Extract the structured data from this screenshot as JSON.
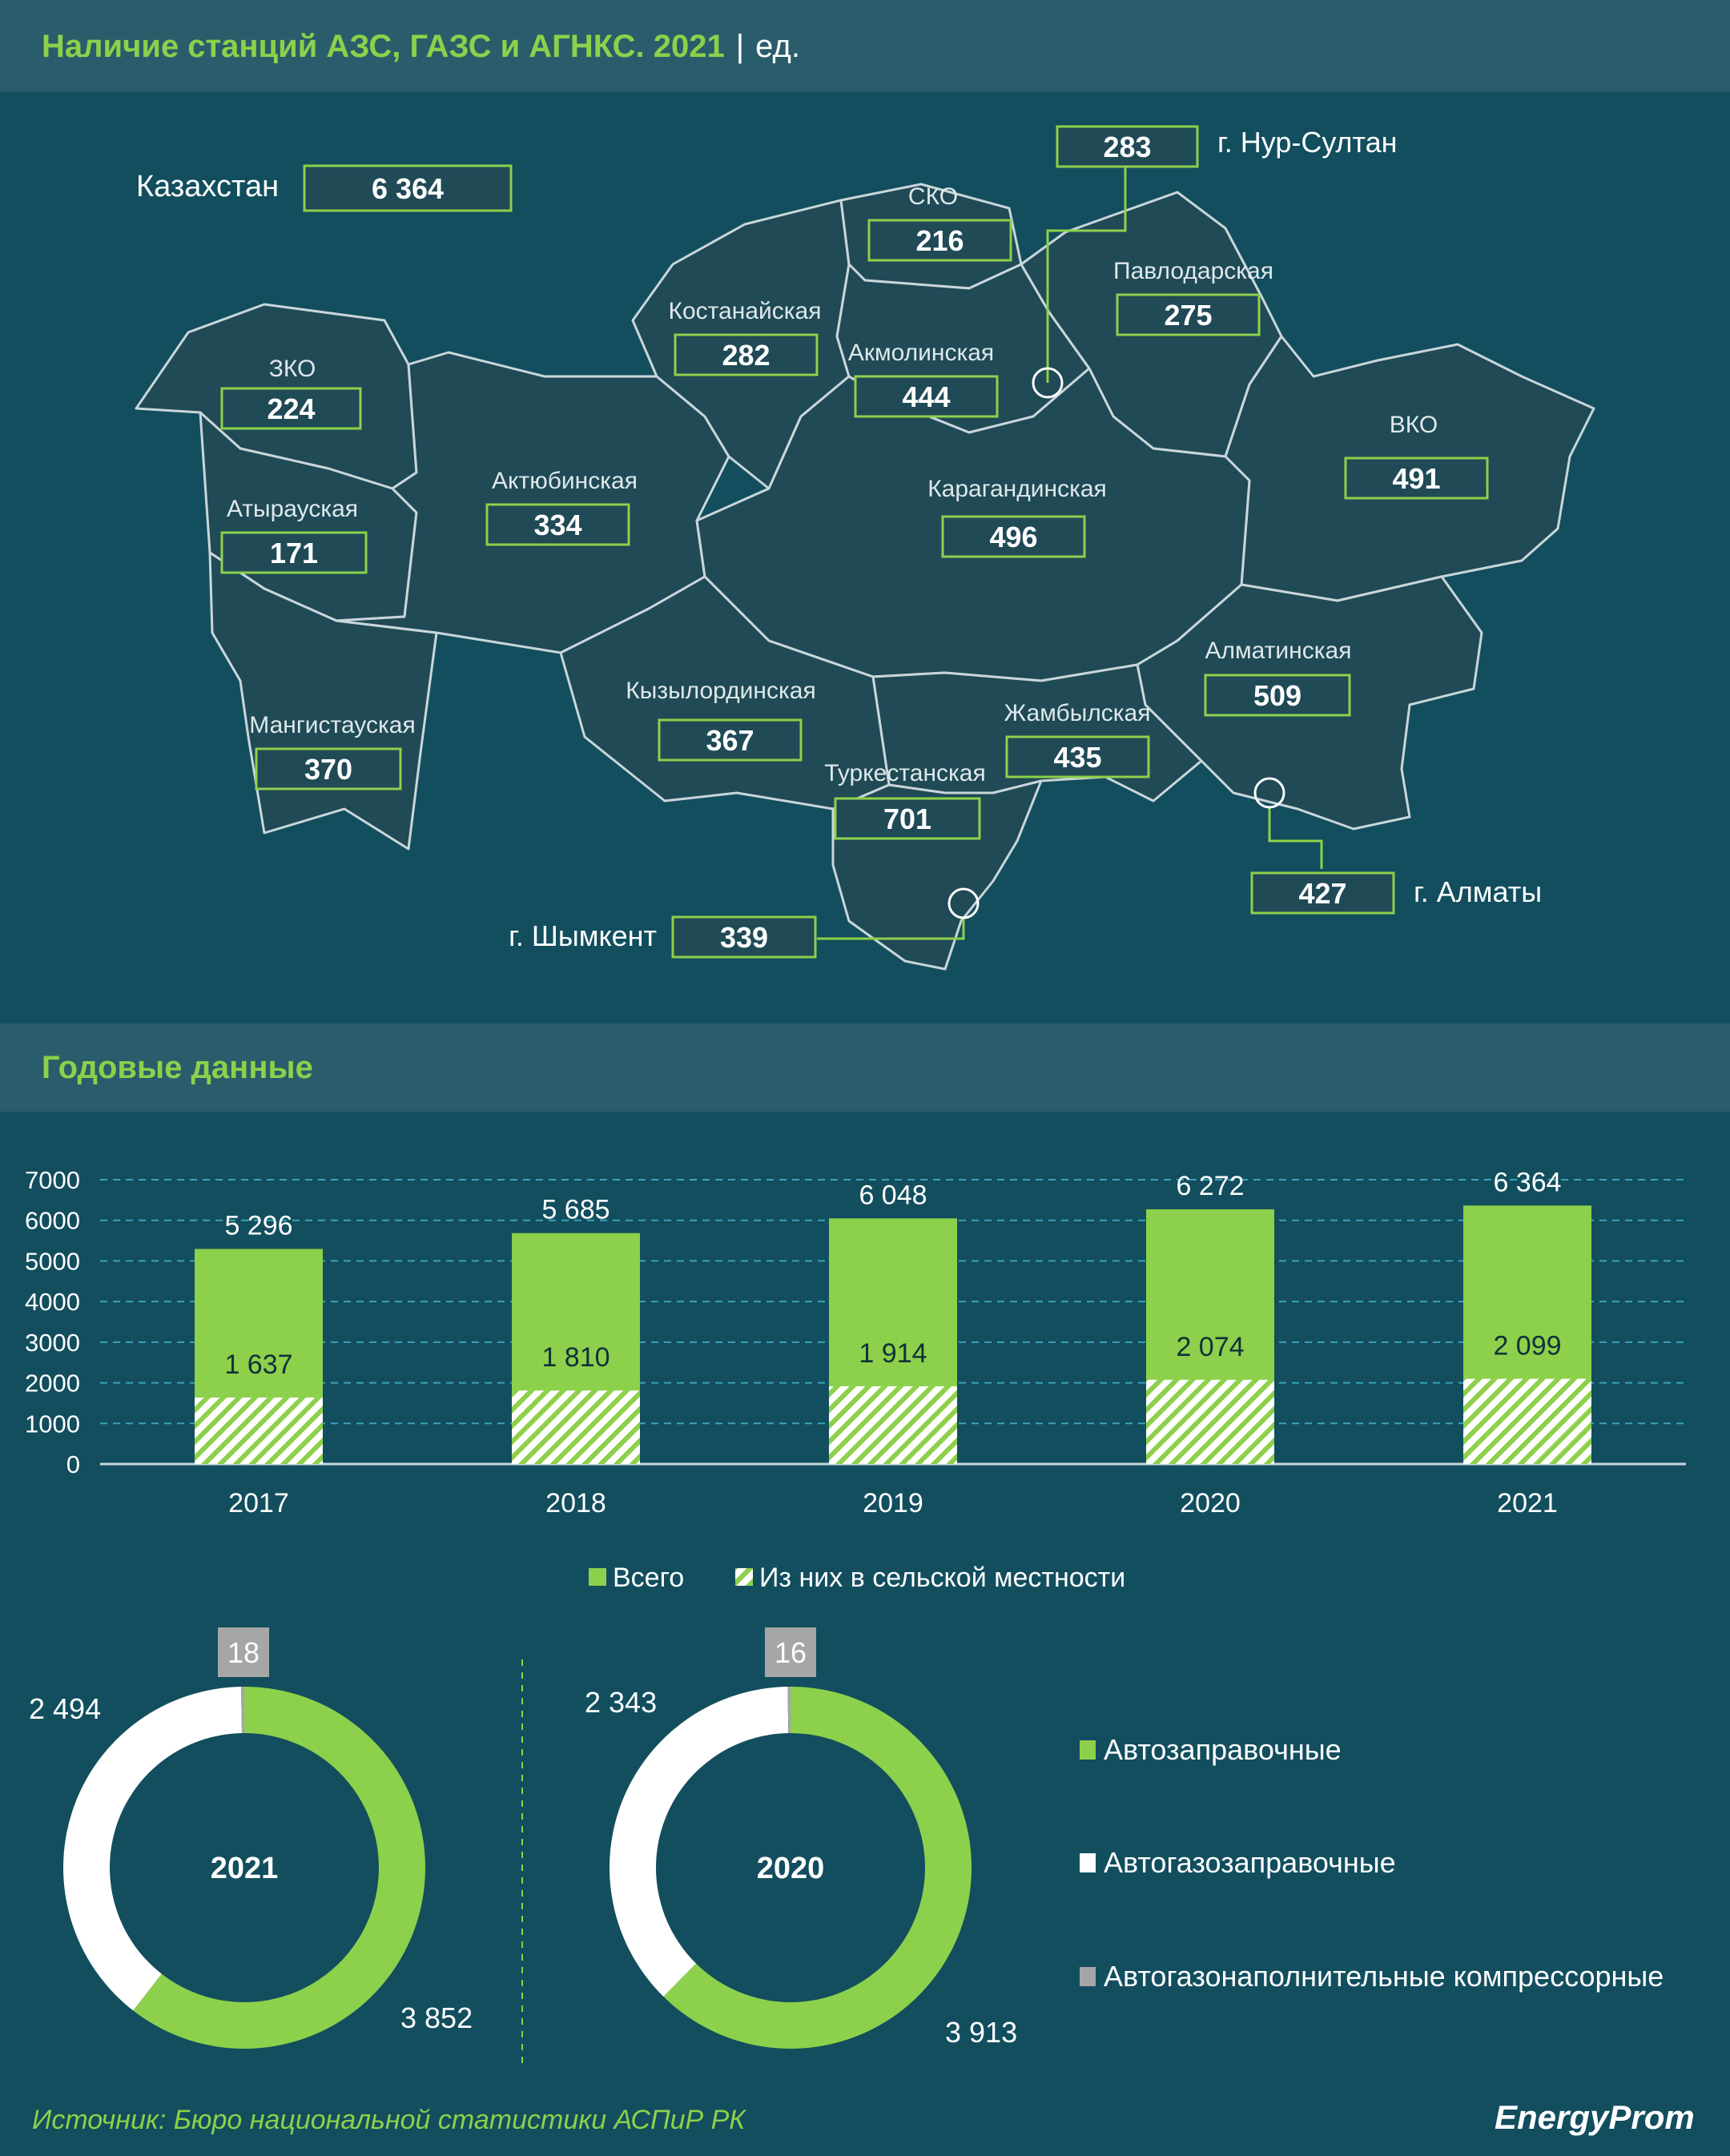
{
  "header": {
    "title": "Наличие станций АЗС, ГАЗС и АГНКС. 2021",
    "separator": "|",
    "unit": "ед."
  },
  "map": {
    "total_label": "Казахстан",
    "total_value": "6 364",
    "regions": [
      {
        "id": "nur-sultan",
        "name": "г. Нур-Султан",
        "value": "283"
      },
      {
        "id": "sko",
        "name": "СКО",
        "value": "216"
      },
      {
        "id": "pavlodar",
        "name": "Павлодарская",
        "value": "275"
      },
      {
        "id": "kostanay",
        "name": "Костанайская",
        "value": "282"
      },
      {
        "id": "akmola",
        "name": "Акмолинская",
        "value": "444"
      },
      {
        "id": "zko",
        "name": "ЗКО",
        "value": "224"
      },
      {
        "id": "aktobe",
        "name": "Актюбинская",
        "value": "334"
      },
      {
        "id": "karaganda",
        "name": "Карагандинская",
        "value": "496"
      },
      {
        "id": "vko",
        "name": "ВКО",
        "value": "491"
      },
      {
        "id": "atyrau",
        "name": "Атырауская",
        "value": "171"
      },
      {
        "id": "almaty-reg",
        "name": "Алматинская",
        "value": "509"
      },
      {
        "id": "kyzylorda",
        "name": "Кызылординская",
        "value": "367"
      },
      {
        "id": "zhambyl",
        "name": "Жамбылская",
        "value": "435"
      },
      {
        "id": "mangistau",
        "name": "Мангистауская",
        "value": "370"
      },
      {
        "id": "turkestan",
        "name": "Туркестанская",
        "value": "701"
      },
      {
        "id": "almaty-city",
        "name": "г. Алматы",
        "value": "427"
      },
      {
        "id": "shymkent",
        "name": "г. Шымкент",
        "value": "339"
      }
    ]
  },
  "annual": {
    "title": "Годовые данные"
  },
  "chart_data": [
    {
      "type": "bar",
      "categories": [
        "2017",
        "2018",
        "2019",
        "2020",
        "2021"
      ],
      "series": [
        {
          "name": "Всего",
          "values": [
            5296,
            5685,
            6048,
            6272,
            6364
          ],
          "labels": [
            "5 296",
            "5 685",
            "6 048",
            "6 272",
            "6 364"
          ]
        },
        {
          "name": "Из них в сельской местности",
          "values": [
            1637,
            1810,
            1914,
            2074,
            2099
          ],
          "labels": [
            "1 637",
            "1 810",
            "1 914",
            "2 074",
            "2 099"
          ]
        }
      ],
      "yticks": [
        "7000",
        "6000",
        "5000",
        "4000",
        "3000",
        "2000",
        "1000",
        "0"
      ],
      "ylim": [
        0,
        7000
      ],
      "grid": true,
      "legend_position": "bottom"
    },
    {
      "type": "pie",
      "center_label": "2021",
      "slices": [
        {
          "name": "Автозаправочные",
          "value": 3852,
          "label": "3 852"
        },
        {
          "name": "Автогазозаправочные",
          "value": 2494,
          "label": "2 494"
        },
        {
          "name": "Автогазонаполнительные компрессорные",
          "value": 18,
          "label": "18"
        }
      ]
    },
    {
      "type": "pie",
      "center_label": "2020",
      "slices": [
        {
          "name": "Автозаправочные",
          "value": 3913,
          "label": "3 913"
        },
        {
          "name": "Автогазозаправочные",
          "value": 2343,
          "label": "2 343"
        },
        {
          "name": "Автогазонаполнительные компрессорные",
          "value": 16,
          "label": "16"
        }
      ]
    }
  ],
  "donut_legend": [
    "Автозаправочные",
    "Автогазозаправочные",
    "Автогазонаполнительные компрессорные"
  ],
  "colors": {
    "green": "#8dd04b",
    "white": "#ffffff",
    "gray": "#a6a6a6",
    "background": "#124e5e",
    "band": "#2a5d6b",
    "region": "#1f4a56"
  },
  "footer": {
    "source": "Источник: Бюро национальной статистики АСПиР РК",
    "logo": "EnergyProm"
  }
}
